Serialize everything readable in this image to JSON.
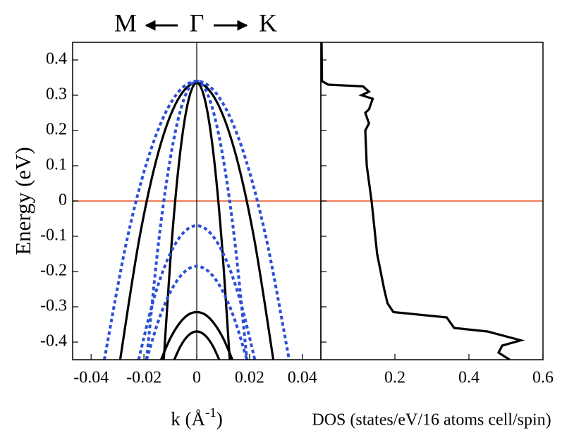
{
  "chart_data": [
    {
      "type": "line",
      "top_labels": [
        "M",
        "Γ",
        "K"
      ],
      "ylabel": "Energy (eV)",
      "xlabel": [
        "k (Å",
        "-1",
        ")"
      ],
      "xlim": [
        -0.047,
        0.047
      ],
      "xticks": [
        -0.04,
        -0.02,
        0,
        0.02,
        0.04
      ],
      "ylim": [
        -0.45,
        0.45
      ],
      "yticks": [
        0.4,
        0.3,
        0.2,
        0.1,
        0,
        -0.1,
        -0.2,
        -0.3,
        -0.4
      ],
      "hline": 0,
      "hline_color": "#e8501e",
      "vline": 0,
      "vline_color": "#000000",
      "series": [
        {
          "color": "#000000",
          "dash": false,
          "x": [
            -0.029,
            -0.02175,
            -0.0145,
            -0.00725,
            0,
            0.00725,
            0.0145,
            0.02175,
            0.029
          ],
          "values": [
            -0.45,
            -0.107,
            0.139,
            0.286,
            0.335,
            0.286,
            0.139,
            -0.107,
            -0.45
          ]
        },
        {
          "color": "#000000",
          "dash": false,
          "x": [
            -0.0125,
            -0.009375,
            -0.00625,
            -0.003125,
            0,
            0.003125,
            0.00625,
            0.009375,
            0.0125
          ],
          "values": [
            -0.45,
            -0.107,
            0.139,
            0.286,
            0.335,
            0.286,
            0.139,
            -0.107,
            -0.45
          ]
        },
        {
          "color": "#000000",
          "dash": false,
          "x": [
            -0.0135,
            -0.010125,
            -0.00675,
            -0.003375,
            0,
            0.003375,
            0.00675,
            0.010125,
            0.0135
          ],
          "values": [
            -0.45,
            -0.391,
            -0.349,
            -0.323,
            -0.315,
            -0.323,
            -0.349,
            -0.391,
            -0.45
          ]
        },
        {
          "color": "#000000",
          "dash": false,
          "x": [
            -0.0085,
            -0.006375,
            -0.00425,
            -0.002125,
            0,
            0.002125,
            0.00425,
            0.006375,
            0.0085
          ],
          "values": [
            -0.45,
            -0.415,
            -0.39,
            -0.375,
            -0.37,
            -0.375,
            -0.39,
            -0.415,
            -0.45
          ]
        },
        {
          "color": "#2b4fd8",
          "dash": true,
          "x": [
            -0.035,
            -0.02625,
            -0.0175,
            -0.00875,
            0,
            0.00875,
            0.0175,
            0.02625,
            0.035
          ],
          "values": [
            -0.45,
            -0.104,
            0.1425,
            0.291,
            0.34,
            0.291,
            0.1425,
            -0.104,
            -0.45
          ]
        },
        {
          "color": "#2b4fd8",
          "dash": true,
          "x": [
            -0.019,
            -0.01425,
            -0.0095,
            -0.00475,
            0,
            0.00475,
            0.0095,
            0.01425,
            0.019
          ],
          "values": [
            -0.45,
            -0.104,
            0.1425,
            0.291,
            0.34,
            0.291,
            0.1425,
            -0.104,
            -0.45
          ]
        },
        {
          "color": "#2b4fd8",
          "dash": true,
          "x": [
            -0.022,
            -0.0165,
            -0.011,
            -0.0055,
            0,
            0.0055,
            0.011,
            0.0165,
            0.022
          ],
          "values": [
            -0.45,
            -0.28375,
            -0.165,
            -0.09375,
            -0.07,
            -0.09375,
            -0.165,
            -0.28375,
            -0.45
          ]
        },
        {
          "color": "#2b4fd8",
          "dash": true,
          "x": [
            -0.019,
            -0.01425,
            -0.0095,
            -0.00475,
            0,
            0.00475,
            0.0095,
            0.01425,
            0.019
          ],
          "values": [
            -0.45,
            -0.334,
            -0.251,
            -0.2016,
            -0.185,
            -0.2016,
            -0.251,
            -0.334,
            -0.45
          ]
        }
      ]
    },
    {
      "type": "line",
      "xlabel": [
        "DOS (states/eV/16 atoms cell/spin)"
      ],
      "xlim": [
        0,
        0.6
      ],
      "xticks": [
        0.2,
        0.4,
        0.6
      ],
      "ylim": [
        -0.45,
        0.45
      ],
      "yticks": [
        0.4,
        0.3,
        0.2,
        0.1,
        0,
        -0.1,
        -0.2,
        -0.3,
        -0.4
      ],
      "hline": 0,
      "hline_color": "#e8501e",
      "series": [
        {
          "color": "#000000",
          "dash": false,
          "x": [
            0.002,
            0.003,
            0.02,
            0.114,
            0.13,
            0.11,
            0.14,
            0.13,
            0.12,
            0.13,
            0.12,
            0.124,
            0.137,
            0.152,
            0.171,
            0.18,
            0.196,
            0.34,
            0.36,
            0.45,
            0.54,
            0.49,
            0.48,
            0.51
          ],
          "values": [
            0.45,
            0.34,
            0.33,
            0.325,
            0.31,
            0.3,
            0.29,
            0.26,
            0.25,
            0.22,
            0.2,
            0.1,
            0,
            -0.15,
            -0.25,
            -0.29,
            -0.315,
            -0.33,
            -0.36,
            -0.37,
            -0.395,
            -0.41,
            -0.43,
            -0.45
          ]
        }
      ]
    }
  ]
}
